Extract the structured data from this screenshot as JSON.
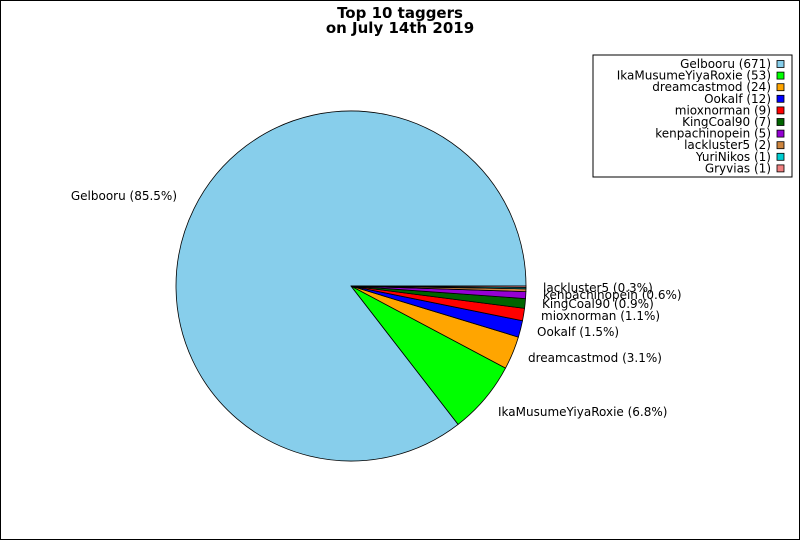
{
  "chart_data": {
    "type": "pie",
    "title_lines": [
      "Top 10 taggers",
      "on July 14th 2019"
    ],
    "legend_placement": "top-right",
    "slices": [
      {
        "name": "Gelbooru",
        "value": 671,
        "legend": "Gelbooru (671)",
        "label": "Gelbooru (85.5%)",
        "color": "#87ceeb"
      },
      {
        "name": "IkaMusumeYiyaRoxie",
        "value": 53,
        "legend": "IkaMusumeYiyaRoxie (53)",
        "label": "IkaMusumeYiyaRoxie (6.8%)",
        "color": "#00ff00"
      },
      {
        "name": "dreamcastmod",
        "value": 24,
        "legend": "dreamcastmod (24)",
        "label": "dreamcastmod (3.1%)",
        "color": "#ffa500"
      },
      {
        "name": "Ookalf",
        "value": 12,
        "legend": "Ookalf (12)",
        "label": "Ookalf (1.5%)",
        "color": "#0000ff"
      },
      {
        "name": "mioxnorman",
        "value": 9,
        "legend": "mioxnorman (9)",
        "label": "mioxnorman (1.1%)",
        "color": "#ff0000"
      },
      {
        "name": "KingCoal90",
        "value": 7,
        "legend": "KingCoal90 (7)",
        "label": "KingCoal90 (0.9%)",
        "color": "#006400"
      },
      {
        "name": "kenpachinopein",
        "value": 5,
        "legend": "kenpachinopein (5)",
        "label": "kenpachinopein (0.6%)",
        "color": "#9400d3"
      },
      {
        "name": "lackluster5",
        "value": 2,
        "legend": "lackluster5 (2)",
        "label": "lackluster5 (0.3%)",
        "color": "#cd853f"
      },
      {
        "name": "YuriNikos",
        "value": 1,
        "legend": "YuriNikos (1)",
        "label": "",
        "color": "#00ced1"
      },
      {
        "name": "Gryvias",
        "value": 1,
        "legend": "Gryvias (1)",
        "label": "",
        "color": "#f08080"
      }
    ]
  }
}
